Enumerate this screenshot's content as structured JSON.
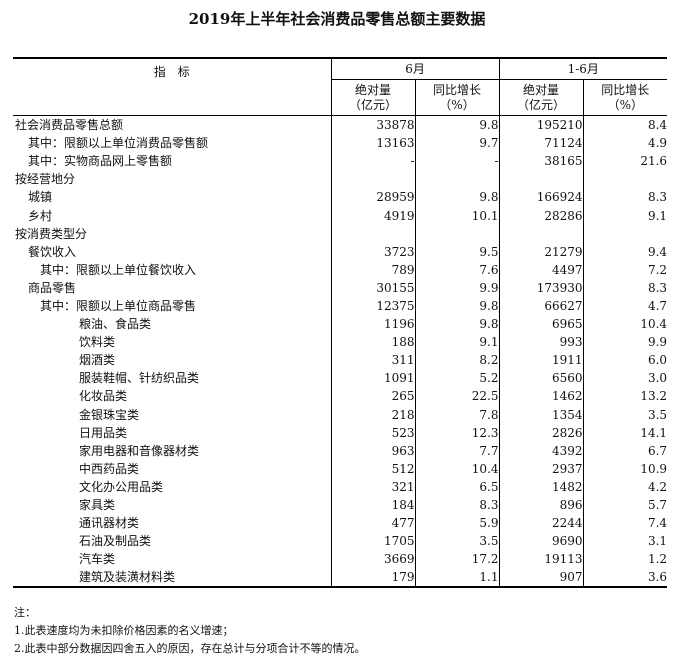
{
  "title": "2019年上半年社会消费品零售总额主要数据",
  "header": {
    "indicator": "指　标",
    "groups": [
      "6月",
      "1-6月"
    ],
    "sub": [
      {
        "l1": "绝对量",
        "l2": "（亿元）"
      },
      {
        "l1": "同比增长",
        "l2": "（%）"
      },
      {
        "l1": "绝对量",
        "l2": "（亿元）"
      },
      {
        "l1": "同比增长",
        "l2": "（%）"
      }
    ]
  },
  "rows": [
    {
      "label": "社会消费品零售总额",
      "level": 0,
      "v": [
        "33878",
        "9.8",
        "195210",
        "8.4"
      ]
    },
    {
      "label": "其中：限额以上单位消费品零售额",
      "level": 1,
      "v": [
        "13163",
        "9.7",
        "71124",
        "4.9"
      ]
    },
    {
      "label": "其中：实物商品网上零售额",
      "level": 1,
      "v": [
        "-",
        "-",
        "38165",
        "21.6"
      ]
    },
    {
      "label": "按经营地分",
      "level": 0,
      "v": [
        "",
        "",
        "",
        ""
      ]
    },
    {
      "label": "城镇",
      "level": 1,
      "v": [
        "28959",
        "9.8",
        "166924",
        "8.3"
      ]
    },
    {
      "label": "乡村",
      "level": 1,
      "v": [
        "4919",
        "10.1",
        "28286",
        "9.1"
      ]
    },
    {
      "label": "按消费类型分",
      "level": 0,
      "v": [
        "",
        "",
        "",
        ""
      ]
    },
    {
      "label": "餐饮收入",
      "level": 1,
      "v": [
        "3723",
        "9.5",
        "21279",
        "9.4"
      ]
    },
    {
      "label": "其中：限额以上单位餐饮收入",
      "level": 2,
      "v": [
        "789",
        "7.6",
        "4497",
        "7.2"
      ]
    },
    {
      "label": "商品零售",
      "level": 1,
      "v": [
        "30155",
        "9.9",
        "173930",
        "8.3"
      ]
    },
    {
      "label": "其中：限额以上单位商品零售",
      "level": 2,
      "v": [
        "12375",
        "9.8",
        "66627",
        "4.7"
      ]
    },
    {
      "label": "粮油、食品类",
      "level": 3,
      "v": [
        "1196",
        "9.8",
        "6965",
        "10.4"
      ]
    },
    {
      "label": "饮料类",
      "level": 3,
      "v": [
        "188",
        "9.1",
        "993",
        "9.9"
      ]
    },
    {
      "label": "烟酒类",
      "level": 3,
      "v": [
        "311",
        "8.2",
        "1911",
        "6.0"
      ]
    },
    {
      "label": "服装鞋帽、针纺织品类",
      "level": 3,
      "v": [
        "1091",
        "5.2",
        "6560",
        "3.0"
      ]
    },
    {
      "label": "化妆品类",
      "level": 3,
      "v": [
        "265",
        "22.5",
        "1462",
        "13.2"
      ]
    },
    {
      "label": "金银珠宝类",
      "level": 3,
      "v": [
        "218",
        "7.8",
        "1354",
        "3.5"
      ]
    },
    {
      "label": "日用品类",
      "level": 3,
      "v": [
        "523",
        "12.3",
        "2826",
        "14.1"
      ]
    },
    {
      "label": "家用电器和音像器材类",
      "level": 3,
      "v": [
        "963",
        "7.7",
        "4392",
        "6.7"
      ]
    },
    {
      "label": "中西药品类",
      "level": 3,
      "v": [
        "512",
        "10.4",
        "2937",
        "10.9"
      ]
    },
    {
      "label": "文化办公用品类",
      "level": 3,
      "v": [
        "321",
        "6.5",
        "1482",
        "4.2"
      ]
    },
    {
      "label": "家具类",
      "level": 3,
      "v": [
        "184",
        "8.3",
        "896",
        "5.7"
      ]
    },
    {
      "label": "通讯器材类",
      "level": 3,
      "v": [
        "477",
        "5.9",
        "2244",
        "7.4"
      ]
    },
    {
      "label": "石油及制品类",
      "level": 3,
      "v": [
        "1705",
        "3.5",
        "9690",
        "3.1"
      ]
    },
    {
      "label": "汽车类",
      "level": 3,
      "v": [
        "3669",
        "17.2",
        "19113",
        "1.2"
      ]
    },
    {
      "label": "建筑及装潢材料类",
      "level": 3,
      "v": [
        "179",
        "1.1",
        "907",
        "3.6"
      ]
    }
  ],
  "notes": [
    "注：",
    "1.此表速度均为未扣除价格因素的名义增速；",
    "2.此表中部分数据因四舍五入的原因，存在总计与分项合计不等的情况。"
  ]
}
